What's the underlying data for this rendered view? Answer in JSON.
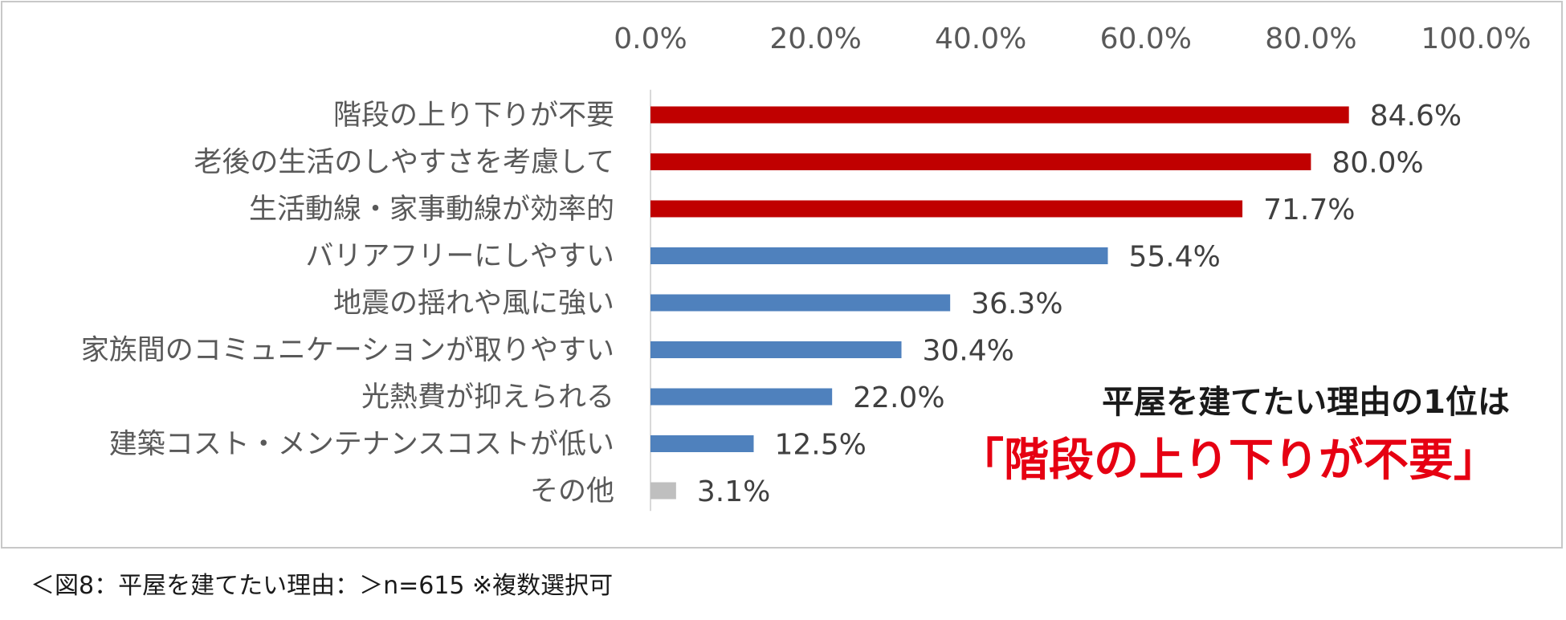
{
  "chart_data": {
    "type": "bar",
    "orientation": "horizontal",
    "categories": [
      "階段の上り下りが不要",
      "老後の生活のしやすさを考慮して",
      "生活動線・家事動線が効率的",
      "バリアフリーにしやすい",
      "地震の揺れや風に強い",
      "家族間のコミュニケーションが取りやすい",
      "光熱費が抑えられる",
      "建築コスト・メンテナンスコストが低い",
      "その他"
    ],
    "values": [
      84.6,
      80.0,
      71.7,
      55.4,
      36.3,
      30.4,
      22.0,
      12.5,
      3.1
    ],
    "value_labels": [
      "84.6%",
      "80.0%",
      "71.7%",
      "55.4%",
      "36.3%",
      "30.4%",
      "22.0%",
      "12.5%",
      "3.1%"
    ],
    "colors": [
      "#c00000",
      "#c00000",
      "#c00000",
      "#4f81bd",
      "#4f81bd",
      "#4f81bd",
      "#4f81bd",
      "#4f81bd",
      "#bfbfbf"
    ],
    "xlim": [
      0,
      100
    ],
    "x_ticks": [
      0,
      20,
      40,
      60,
      80,
      100
    ],
    "x_tick_labels": [
      "0.0%",
      "20.0%",
      "40.0%",
      "60.0%",
      "80.0%",
      "100.0%"
    ],
    "x_axis_position": "top",
    "grid": false,
    "legend": "none",
    "title": "",
    "xlabel": "",
    "ylabel": ""
  },
  "annotation": {
    "subtitle": "平屋を建てたい理由の1位は",
    "highlight": "「階段の上り下りが不要」",
    "highlight_color": "#e60012"
  },
  "caption": "＜図8：平屋を建てたい理由：＞n=615 ※複数選択可"
}
